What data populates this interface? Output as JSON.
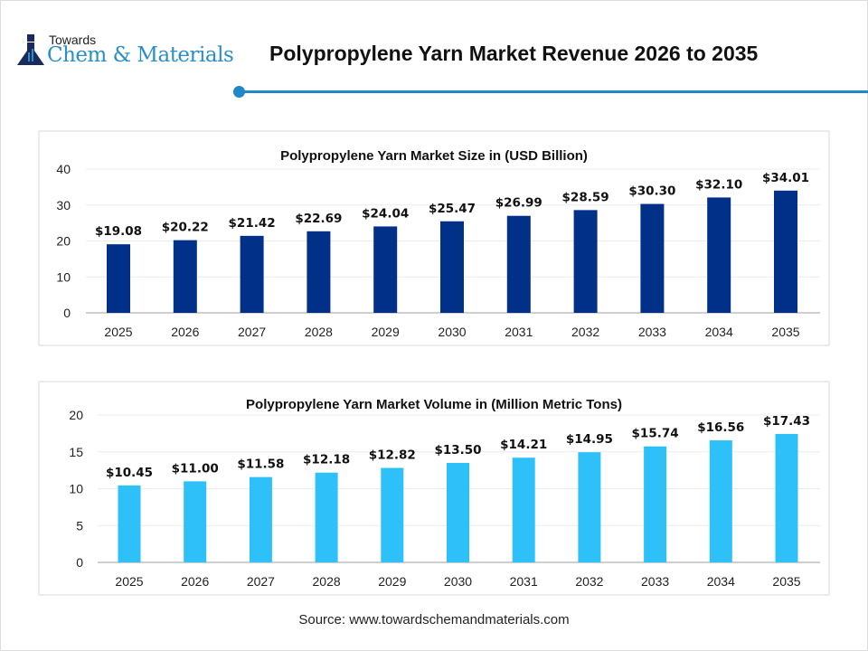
{
  "logo": {
    "line1": "Towards",
    "line2": "Chem & Materials"
  },
  "title": "Polypropylene Yarn Market Revenue 2026 to 2035",
  "source": "Source: www.towardschemandmaterials.com",
  "chart_data": [
    {
      "type": "bar",
      "title": "Polypropylene Yarn Market Size in (USD Billion)",
      "categories": [
        "2025",
        "2026",
        "2027",
        "2028",
        "2029",
        "2030",
        "2031",
        "2032",
        "2033",
        "2034",
        "2035"
      ],
      "values": [
        19.08,
        20.22,
        21.42,
        22.69,
        24.04,
        25.47,
        26.99,
        28.59,
        30.3,
        32.1,
        34.01
      ],
      "labels": [
        "$19.08",
        "$20.22",
        "$21.42",
        "$22.69",
        "$24.04",
        "$25.47",
        "$26.99",
        "$28.59",
        "$30.30",
        "$32.10",
        "$34.01"
      ],
      "ylim": [
        0,
        40
      ],
      "yticks": [
        0,
        10,
        20,
        30,
        40
      ],
      "color": "#003087",
      "grid": true
    },
    {
      "type": "bar",
      "title": "Polypropylene Yarn Market Volume in (Million Metric Tons)",
      "categories": [
        "2025",
        "2026",
        "2027",
        "2028",
        "2029",
        "2030",
        "2031",
        "2032",
        "2033",
        "2034",
        "2035"
      ],
      "values": [
        10.45,
        11.0,
        11.58,
        12.18,
        12.82,
        13.5,
        14.21,
        14.95,
        15.74,
        16.56,
        17.43
      ],
      "labels": [
        "$10.45",
        "$11.00",
        "$11.58",
        "$12.18",
        "$12.82",
        "$13.50",
        "$14.21",
        "$14.95",
        "$15.74",
        "$16.56",
        "$17.43"
      ],
      "ylim": [
        0,
        20
      ],
      "yticks": [
        0,
        5,
        10,
        15,
        20
      ],
      "color": "#2ec0f9",
      "grid": true
    }
  ]
}
